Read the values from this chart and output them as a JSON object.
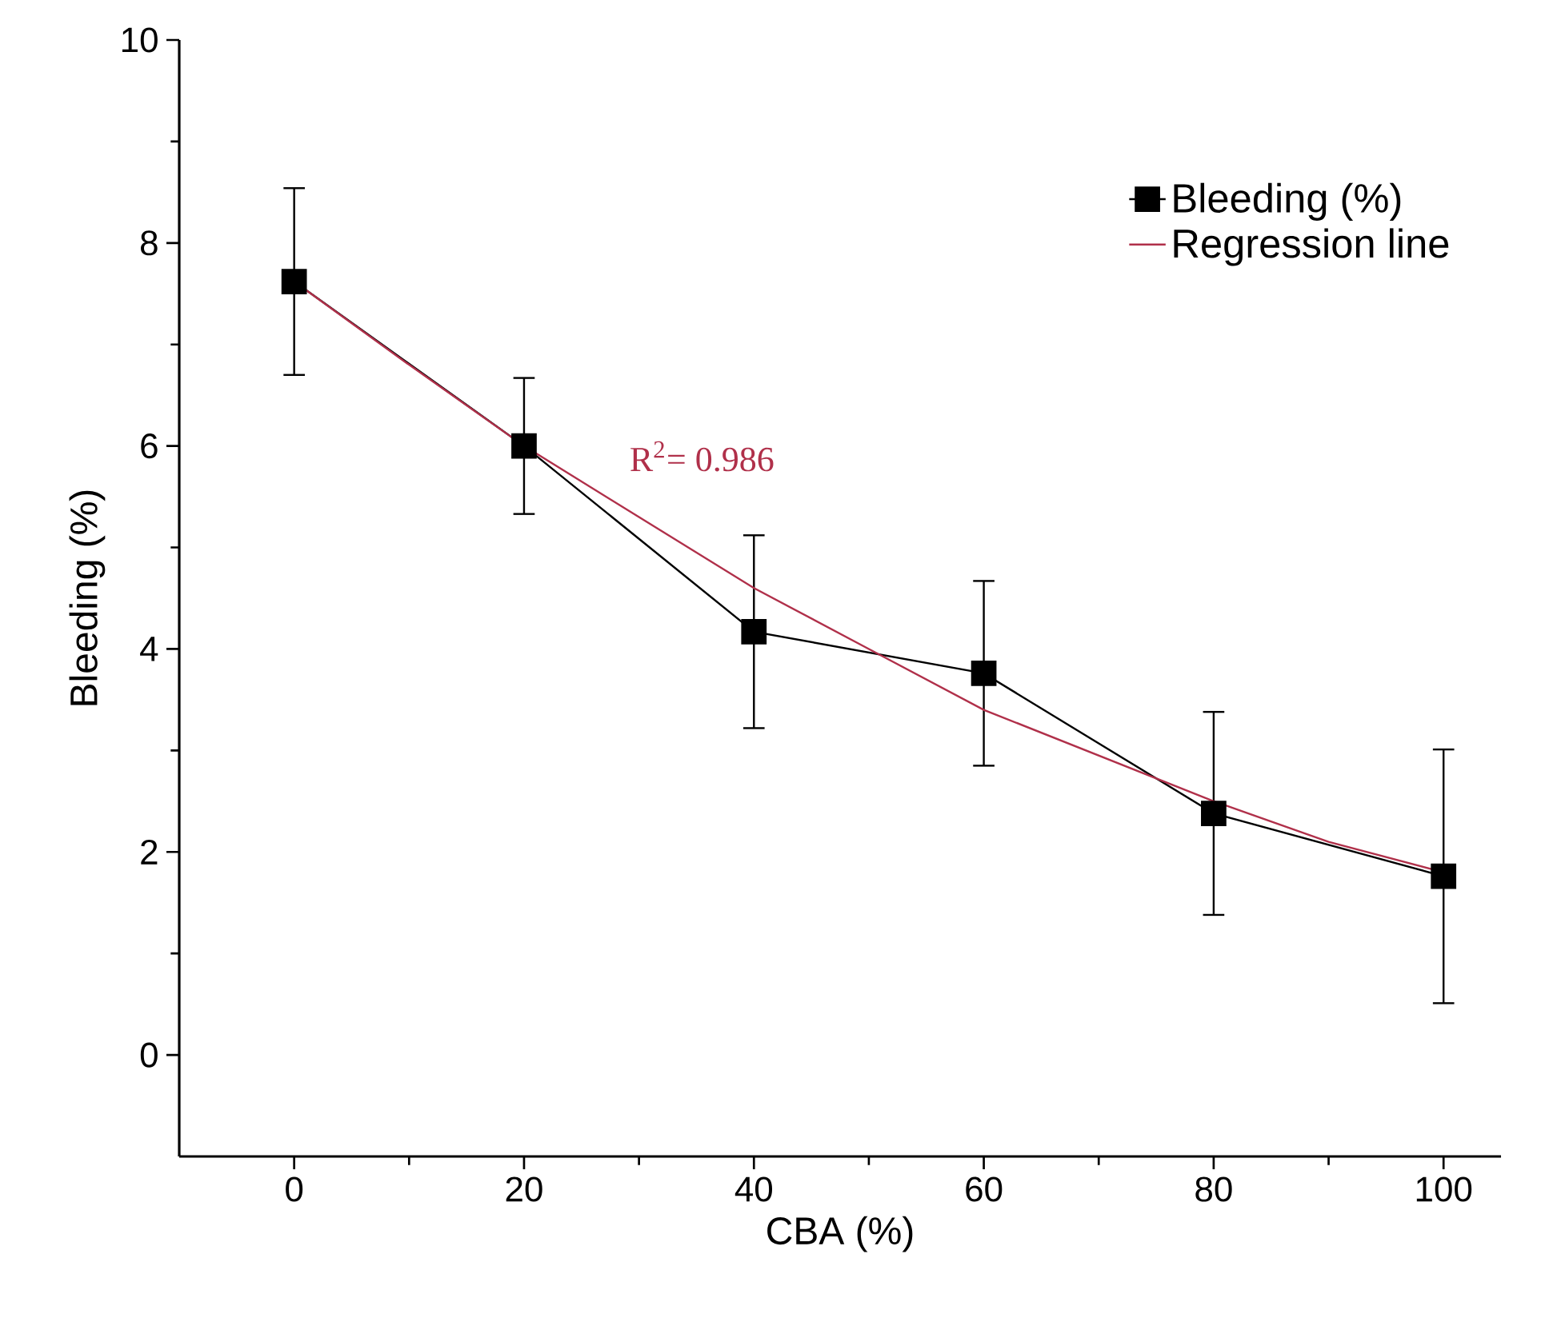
{
  "chart_data": {
    "type": "line",
    "xlabel": "CBA (%)",
    "ylabel": "Bleeding (%)",
    "xlim": [
      -10,
      105
    ],
    "ylim": [
      -1,
      10
    ],
    "xticks": [
      0,
      20,
      40,
      60,
      80,
      100
    ],
    "yticks": [
      0,
      2,
      4,
      6,
      8,
      10
    ],
    "legend": "top right",
    "grid": false,
    "annotations": [
      "R$^{2}$= 0.986"
    ],
    "series": [
      {
        "name": "Bleeding (%)",
        "color": "#000000",
        "marker": "square",
        "x": [
          0,
          20,
          40,
          60,
          80,
          100
        ],
        "values": [
          7.62,
          6.0,
          4.17,
          3.76,
          2.38,
          1.76
        ],
        "errors": [
          0.92,
          0.67,
          0.95,
          0.91,
          1.0,
          1.25
        ]
      },
      {
        "name": "Regression line",
        "color": "#b0304a",
        "marker": "none",
        "x": [
          0,
          10,
          20,
          30,
          40,
          50,
          60,
          70,
          80,
          90,
          100
        ],
        "values": [
          7.62,
          6.8,
          6.0,
          5.3,
          4.6,
          4.0,
          3.4,
          2.95,
          2.5,
          2.1,
          1.8
        ]
      }
    ]
  }
}
